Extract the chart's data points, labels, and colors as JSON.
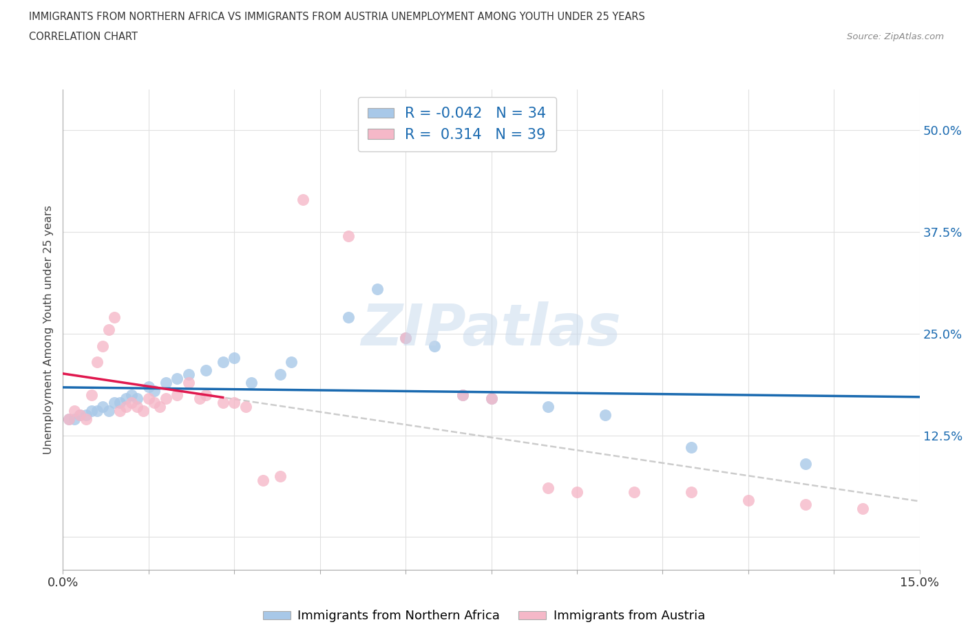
{
  "title_line1": "IMMIGRANTS FROM NORTHERN AFRICA VS IMMIGRANTS FROM AUSTRIA UNEMPLOYMENT AMONG YOUTH UNDER 25 YEARS",
  "title_line2": "CORRELATION CHART",
  "source_text": "Source: ZipAtlas.com",
  "ylabel": "Unemployment Among Youth under 25 years",
  "xlim": [
    0.0,
    0.15
  ],
  "ylim": [
    -0.04,
    0.55
  ],
  "ytick_vals": [
    0.0,
    0.125,
    0.25,
    0.375,
    0.5
  ],
  "ytick_labels": [
    "",
    "12.5%",
    "25.0%",
    "37.5%",
    "50.0%"
  ],
  "xtick_vals": [
    0.0,
    0.015,
    0.03,
    0.045,
    0.06,
    0.075,
    0.09,
    0.105,
    0.12,
    0.135,
    0.15
  ],
  "xtick_labels_show": [
    "0.0%",
    "",
    "",
    "",
    "",
    "",
    "",
    "",
    "",
    "",
    "15.0%"
  ],
  "color_blue": "#a8c8e8",
  "color_pink": "#f5b8c8",
  "line_blue": "#1a6ab0",
  "line_pink": "#e0184e",
  "line_dash_color": "#cccccc",
  "R_blue": -0.042,
  "N_blue": 34,
  "R_pink": 0.314,
  "N_pink": 39,
  "legend_label_blue": "Immigrants from Northern Africa",
  "legend_label_pink": "Immigrants from Austria",
  "blue_x": [
    0.001,
    0.002,
    0.003,
    0.004,
    0.005,
    0.006,
    0.007,
    0.008,
    0.009,
    0.01,
    0.011,
    0.012,
    0.013,
    0.015,
    0.016,
    0.018,
    0.02,
    0.022,
    0.025,
    0.028,
    0.03,
    0.033,
    0.038,
    0.04,
    0.05,
    0.055,
    0.06,
    0.065,
    0.07,
    0.075,
    0.085,
    0.095,
    0.11,
    0.13
  ],
  "blue_y": [
    0.145,
    0.145,
    0.15,
    0.15,
    0.155,
    0.155,
    0.16,
    0.155,
    0.165,
    0.165,
    0.17,
    0.175,
    0.17,
    0.185,
    0.18,
    0.19,
    0.195,
    0.2,
    0.205,
    0.215,
    0.22,
    0.19,
    0.2,
    0.215,
    0.27,
    0.305,
    0.245,
    0.235,
    0.175,
    0.17,
    0.16,
    0.15,
    0.11,
    0.09
  ],
  "pink_x": [
    0.001,
    0.002,
    0.003,
    0.004,
    0.005,
    0.006,
    0.007,
    0.008,
    0.009,
    0.01,
    0.011,
    0.012,
    0.013,
    0.014,
    0.015,
    0.016,
    0.017,
    0.018,
    0.02,
    0.022,
    0.024,
    0.025,
    0.028,
    0.03,
    0.032,
    0.035,
    0.038,
    0.042,
    0.05,
    0.06,
    0.07,
    0.075,
    0.085,
    0.09,
    0.1,
    0.11,
    0.12,
    0.13,
    0.14
  ],
  "pink_y": [
    0.145,
    0.155,
    0.15,
    0.145,
    0.175,
    0.215,
    0.235,
    0.255,
    0.27,
    0.155,
    0.16,
    0.165,
    0.16,
    0.155,
    0.17,
    0.165,
    0.16,
    0.17,
    0.175,
    0.19,
    0.17,
    0.175,
    0.165,
    0.165,
    0.16,
    0.07,
    0.075,
    0.415,
    0.37,
    0.245,
    0.175,
    0.17,
    0.06,
    0.055,
    0.055,
    0.055,
    0.045,
    0.04,
    0.035
  ],
  "watermark_text": "ZIPatlas",
  "bg_color": "#ffffff",
  "grid_color": "#e0e0e0",
  "tick_color_right": "#1a6ab0",
  "tick_color_bottom": "#333333"
}
